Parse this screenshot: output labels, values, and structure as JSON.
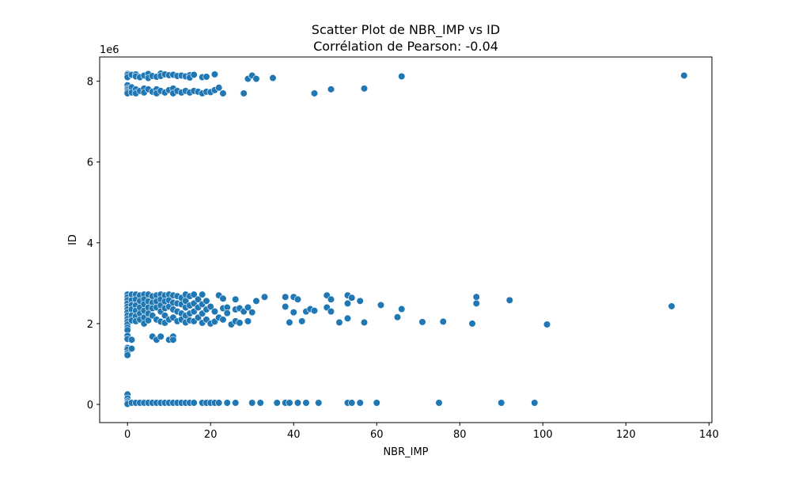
{
  "chart_data": {
    "type": "scatter",
    "title": "Scatter Plot de NBR_IMP vs ID",
    "subtitle": "Corrélation de Pearson: -0.04",
    "xlabel": "NBR_IMP",
    "ylabel": "ID",
    "y_offset_text": "1e6",
    "xlim": [
      -6.7,
      140.7
    ],
    "ylim": [
      -450000,
      8600000
    ],
    "x_ticks": [
      0,
      20,
      40,
      60,
      80,
      100,
      120,
      140
    ],
    "x_tick_labels": [
      "0",
      "20",
      "40",
      "60",
      "80",
      "100",
      "120",
      "140"
    ],
    "y_ticks": [
      0,
      2000000,
      4000000,
      6000000,
      8000000
    ],
    "y_tick_labels": [
      "0",
      "2",
      "4",
      "6",
      "8"
    ],
    "grid": false,
    "legend": "none",
    "marker_color": "#1f77b4",
    "marker_edge_color": "#ffffff",
    "points": [
      [
        0,
        8180000
      ],
      [
        0,
        8150000
      ],
      [
        0,
        8100000
      ],
      [
        0,
        7900000
      ],
      [
        0,
        7820000
      ],
      [
        0,
        7780000
      ],
      [
        0,
        7740000
      ],
      [
        0,
        7700000
      ],
      [
        1,
        8160000
      ],
      [
        1,
        7850000
      ],
      [
        1,
        7720000
      ],
      [
        2,
        8170000
      ],
      [
        2,
        8120000
      ],
      [
        2,
        7800000
      ],
      [
        2,
        7700000
      ],
      [
        3,
        8100000
      ],
      [
        3,
        7760000
      ],
      [
        4,
        8140000
      ],
      [
        4,
        7820000
      ],
      [
        4,
        7720000
      ],
      [
        5,
        8180000
      ],
      [
        5,
        8080000
      ],
      [
        5,
        7800000
      ],
      [
        6,
        8130000
      ],
      [
        6,
        7740000
      ],
      [
        7,
        8110000
      ],
      [
        7,
        7800000
      ],
      [
        7,
        7700000
      ],
      [
        8,
        8190000
      ],
      [
        8,
        8130000
      ],
      [
        8,
        7760000
      ],
      [
        9,
        8170000
      ],
      [
        9,
        7720000
      ],
      [
        10,
        8150000
      ],
      [
        10,
        7780000
      ],
      [
        11,
        8160000
      ],
      [
        11,
        7820000
      ],
      [
        11,
        7700000
      ],
      [
        12,
        8130000
      ],
      [
        12,
        7760000
      ],
      [
        13,
        8140000
      ],
      [
        13,
        7720000
      ],
      [
        14,
        8120000
      ],
      [
        14,
        7760000
      ],
      [
        15,
        8150000
      ],
      [
        15,
        8090000
      ],
      [
        15,
        7720000
      ],
      [
        16,
        8160000
      ],
      [
        16,
        7760000
      ],
      [
        17,
        7740000
      ],
      [
        18,
        8100000
      ],
      [
        18,
        7700000
      ],
      [
        19,
        8110000
      ],
      [
        19,
        7740000
      ],
      [
        20,
        7730000
      ],
      [
        21,
        8170000
      ],
      [
        21,
        7780000
      ],
      [
        22,
        7840000
      ],
      [
        23,
        7700000
      ],
      [
        28,
        7700000
      ],
      [
        29,
        8060000
      ],
      [
        30,
        8140000
      ],
      [
        31,
        8060000
      ],
      [
        35,
        8080000
      ],
      [
        45,
        7700000
      ],
      [
        49,
        7800000
      ],
      [
        57,
        7820000
      ],
      [
        66,
        8120000
      ],
      [
        134,
        8140000
      ],
      [
        0,
        2720000
      ],
      [
        0,
        2650000
      ],
      [
        0,
        2580000
      ],
      [
        0,
        2500000
      ],
      [
        0,
        2420000
      ],
      [
        0,
        2350000
      ],
      [
        0,
        2280000
      ],
      [
        0,
        2200000
      ],
      [
        0,
        2120000
      ],
      [
        0,
        2050000
      ],
      [
        0,
        1980000
      ],
      [
        0,
        1900000
      ],
      [
        0,
        1840000
      ],
      [
        0,
        1700000
      ],
      [
        0,
        1620000
      ],
      [
        0,
        1400000
      ],
      [
        0,
        1360000
      ],
      [
        0,
        1270000
      ],
      [
        0,
        1220000
      ],
      [
        1,
        2720000
      ],
      [
        1,
        2580000
      ],
      [
        1,
        2460000
      ],
      [
        1,
        2350000
      ],
      [
        1,
        2200000
      ],
      [
        1,
        2080000
      ],
      [
        1,
        1600000
      ],
      [
        1,
        1380000
      ],
      [
        2,
        2720000
      ],
      [
        2,
        2600000
      ],
      [
        2,
        2450000
      ],
      [
        2,
        2320000
      ],
      [
        2,
        2180000
      ],
      [
        2,
        2060000
      ],
      [
        3,
        2700000
      ],
      [
        3,
        2560000
      ],
      [
        3,
        2400000
      ],
      [
        3,
        2250000
      ],
      [
        3,
        2100000
      ],
      [
        4,
        2720000
      ],
      [
        4,
        2600000
      ],
      [
        4,
        2480000
      ],
      [
        4,
        2320000
      ],
      [
        4,
        2150000
      ],
      [
        4,
        2000000
      ],
      [
        5,
        2720000
      ],
      [
        5,
        2550000
      ],
      [
        5,
        2400000
      ],
      [
        5,
        2250000
      ],
      [
        5,
        2080000
      ],
      [
        6,
        2680000
      ],
      [
        6,
        2520000
      ],
      [
        6,
        2380000
      ],
      [
        6,
        2200000
      ],
      [
        6,
        1680000
      ],
      [
        7,
        2700000
      ],
      [
        7,
        2550000
      ],
      [
        7,
        2400000
      ],
      [
        7,
        2100000
      ],
      [
        7,
        1600000
      ],
      [
        8,
        2720000
      ],
      [
        8,
        2600000
      ],
      [
        8,
        2450000
      ],
      [
        8,
        2300000
      ],
      [
        8,
        2050000
      ],
      [
        8,
        1680000
      ],
      [
        9,
        2700000
      ],
      [
        9,
        2550000
      ],
      [
        9,
        2380000
      ],
      [
        9,
        2200000
      ],
      [
        9,
        2020000
      ],
      [
        10,
        2720000
      ],
      [
        10,
        2580000
      ],
      [
        10,
        2420000
      ],
      [
        10,
        2100000
      ],
      [
        10,
        1600000
      ],
      [
        11,
        2700000
      ],
      [
        11,
        2520000
      ],
      [
        11,
        2350000
      ],
      [
        11,
        2150000
      ],
      [
        11,
        1680000
      ],
      [
        11,
        1600000
      ],
      [
        12,
        2680000
      ],
      [
        12,
        2500000
      ],
      [
        12,
        2300000
      ],
      [
        12,
        2060000
      ],
      [
        13,
        2640000
      ],
      [
        13,
        2480000
      ],
      [
        13,
        2250000
      ],
      [
        13,
        2100000
      ],
      [
        14,
        2720000
      ],
      [
        14,
        2560000
      ],
      [
        14,
        2400000
      ],
      [
        14,
        2200000
      ],
      [
        14,
        2030000
      ],
      [
        15,
        2680000
      ],
      [
        15,
        2450000
      ],
      [
        15,
        2250000
      ],
      [
        15,
        2080000
      ],
      [
        16,
        2720000
      ],
      [
        16,
        2500000
      ],
      [
        16,
        2300000
      ],
      [
        16,
        2060000
      ],
      [
        17,
        2600000
      ],
      [
        17,
        2400000
      ],
      [
        17,
        2150000
      ],
      [
        18,
        2720000
      ],
      [
        18,
        2480000
      ],
      [
        18,
        2250000
      ],
      [
        18,
        2020000
      ],
      [
        19,
        2560000
      ],
      [
        19,
        2350000
      ],
      [
        19,
        2100000
      ],
      [
        20,
        2420000
      ],
      [
        20,
        2000000
      ],
      [
        21,
        2300000
      ],
      [
        21,
        2050000
      ],
      [
        22,
        2700000
      ],
      [
        22,
        2150000
      ],
      [
        23,
        2620000
      ],
      [
        23,
        2380000
      ],
      [
        23,
        2100000
      ],
      [
        24,
        2400000
      ],
      [
        24,
        2260000
      ],
      [
        25,
        1980000
      ],
      [
        26,
        2600000
      ],
      [
        26,
        2060000
      ],
      [
        26,
        2350000
      ],
      [
        27,
        2380000
      ],
      [
        27,
        2020000
      ],
      [
        28,
        2300000
      ],
      [
        29,
        2400000
      ],
      [
        29,
        2060000
      ],
      [
        30,
        2280000
      ],
      [
        31,
        2560000
      ],
      [
        33,
        2660000
      ],
      [
        38,
        2660000
      ],
      [
        38,
        2420000
      ],
      [
        39,
        2030000
      ],
      [
        40,
        2660000
      ],
      [
        40,
        2280000
      ],
      [
        41,
        2600000
      ],
      [
        42,
        2060000
      ],
      [
        43,
        2300000
      ],
      [
        44,
        2360000
      ],
      [
        45,
        2320000
      ],
      [
        48,
        2700000
      ],
      [
        48,
        2400000
      ],
      [
        49,
        2600000
      ],
      [
        49,
        2300000
      ],
      [
        51,
        2030000
      ],
      [
        53,
        2700000
      ],
      [
        53,
        2500000
      ],
      [
        53,
        2130000
      ],
      [
        54,
        2640000
      ],
      [
        56,
        2560000
      ],
      [
        57,
        2030000
      ],
      [
        61,
        2460000
      ],
      [
        65,
        2160000
      ],
      [
        66,
        2360000
      ],
      [
        71,
        2040000
      ],
      [
        76,
        2050000
      ],
      [
        83,
        2000000
      ],
      [
        84,
        2660000
      ],
      [
        84,
        2500000
      ],
      [
        92,
        2580000
      ],
      [
        101,
        1980000
      ],
      [
        131,
        2430000
      ],
      [
        0,
        250000
      ],
      [
        0,
        150000
      ],
      [
        0,
        80000
      ],
      [
        0,
        40000
      ],
      [
        0,
        10000
      ],
      [
        1,
        40000
      ],
      [
        2,
        40000
      ],
      [
        3,
        40000
      ],
      [
        4,
        40000
      ],
      [
        5,
        40000
      ],
      [
        6,
        40000
      ],
      [
        7,
        40000
      ],
      [
        8,
        40000
      ],
      [
        9,
        40000
      ],
      [
        10,
        40000
      ],
      [
        11,
        40000
      ],
      [
        12,
        40000
      ],
      [
        13,
        40000
      ],
      [
        14,
        40000
      ],
      [
        15,
        40000
      ],
      [
        16,
        40000
      ],
      [
        18,
        40000
      ],
      [
        19,
        40000
      ],
      [
        20,
        40000
      ],
      [
        21,
        40000
      ],
      [
        22,
        40000
      ],
      [
        24,
        40000
      ],
      [
        26,
        40000
      ],
      [
        30,
        40000
      ],
      [
        32,
        40000
      ],
      [
        36,
        40000
      ],
      [
        38,
        40000
      ],
      [
        39,
        40000
      ],
      [
        41,
        40000
      ],
      [
        43,
        40000
      ],
      [
        46,
        40000
      ],
      [
        53,
        40000
      ],
      [
        54,
        40000
      ],
      [
        56,
        40000
      ],
      [
        60,
        40000
      ],
      [
        75,
        40000
      ],
      [
        90,
        40000
      ],
      [
        98,
        40000
      ]
    ]
  }
}
